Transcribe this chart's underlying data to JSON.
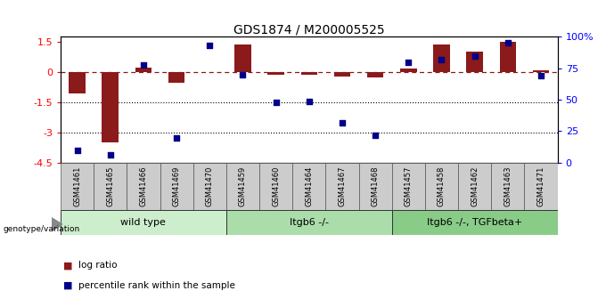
{
  "title": "GDS1874 / M200005525",
  "samples": [
    "GSM41461",
    "GSM41465",
    "GSM41466",
    "GSM41469",
    "GSM41470",
    "GSM41459",
    "GSM41460",
    "GSM41464",
    "GSM41467",
    "GSM41468",
    "GSM41457",
    "GSM41458",
    "GSM41462",
    "GSM41463",
    "GSM41471"
  ],
  "log_ratio": [
    -1.05,
    -3.5,
    0.22,
    -0.55,
    0.0,
    1.35,
    -0.12,
    -0.15,
    -0.2,
    -0.28,
    0.18,
    1.35,
    1.0,
    1.5,
    0.1
  ],
  "percentile_rank": [
    10,
    6,
    78,
    20,
    93,
    70,
    48,
    49,
    32,
    22,
    80,
    82,
    85,
    95,
    69
  ],
  "groups": [
    {
      "label": "wild type",
      "n_samples": 5,
      "color": "#cceecc"
    },
    {
      "label": "Itgb6 -/-",
      "n_samples": 5,
      "color": "#aaddaa"
    },
    {
      "label": "Itgb6 -/-, TGFbeta+",
      "n_samples": 5,
      "color": "#88cc88"
    }
  ],
  "bar_color_red": "#8B1A1A",
  "bar_color_blue": "#00008B",
  "ylim_left": [
    -4.5,
    1.75
  ],
  "ylim_right": [
    0,
    100
  ],
  "yticks_left": [
    1.5,
    0.0,
    -1.5,
    -3.0,
    -4.5
  ],
  "yticks_right": [
    0,
    25,
    50,
    75,
    100
  ],
  "dotted_lines": [
    -1.5,
    -3.0
  ],
  "background_color": "#ffffff",
  "legend_items": [
    "log ratio",
    "percentile rank within the sample"
  ],
  "bar_width": 0.5
}
